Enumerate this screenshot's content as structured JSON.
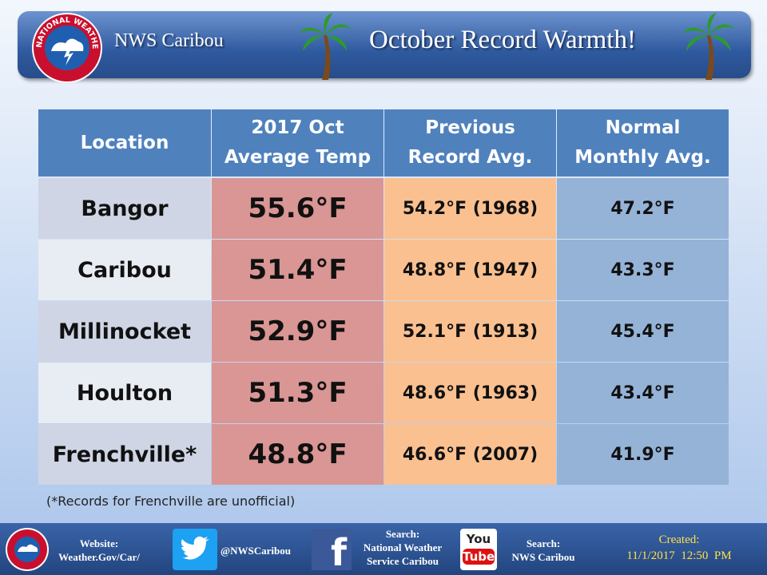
{
  "header": {
    "logo_text": "NATIONAL WEATHER SERVICE",
    "office": "NWS Caribou",
    "title": "October Record Warmth!"
  },
  "table": {
    "headers": [
      [
        "Location"
      ],
      [
        "2017 Oct",
        "Average Temp"
      ],
      [
        "Previous",
        "Record Avg."
      ],
      [
        "Normal",
        "Monthly Avg."
      ]
    ],
    "rows": [
      [
        "Bangor",
        "55.6°F",
        "54.2°F (1968)",
        "47.2°F"
      ],
      [
        "Caribou",
        "51.4°F",
        "48.8°F (1947)",
        "43.3°F"
      ],
      [
        "Millinocket",
        "52.9°F",
        "52.1°F (1913)",
        "45.4°F"
      ],
      [
        "Houlton",
        "51.3°F",
        "48.6°F (1963)",
        "43.4°F"
      ],
      [
        "Frenchville*",
        "48.8°F",
        "46.6°F (2007)",
        "41.9°F"
      ]
    ]
  },
  "note": "(*Records for Frenchville are unofficial)",
  "footer": {
    "website": [
      "Website:",
      "Weather.Gov/Car/"
    ],
    "twitter": "@NWSCaribou",
    "facebook_icon": "f",
    "facebook": [
      "Search:",
      "National Weather",
      "Service Caribou"
    ],
    "youtube_icon": [
      "You",
      "Tube"
    ],
    "youtube": [
      "Search:",
      "NWS Caribou"
    ],
    "created": [
      "Created:",
      "11/1/2017  12:50  PM"
    ]
  }
}
